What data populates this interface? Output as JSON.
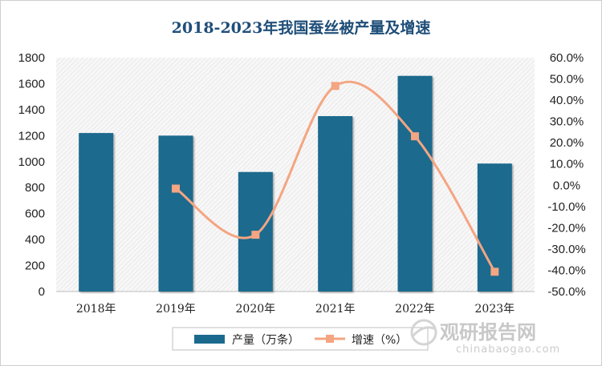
{
  "chart_data": {
    "type": "bar",
    "title": "2018-2023年我国蚕丝被产量及增速",
    "categories": [
      "2018年",
      "2019年",
      "2020年",
      "2021年",
      "2022年",
      "2023年"
    ],
    "series": [
      {
        "name": "产量（万条）",
        "type": "bar",
        "axis": "left",
        "color": "#1b6a8e",
        "values": [
          1220,
          1200,
          920,
          1350,
          1660,
          985
        ]
      },
      {
        "name": "增速（%）",
        "type": "line",
        "axis": "right",
        "color": "#f4a582",
        "smooth": true,
        "values": [
          null,
          -1.6,
          -23.3,
          46.7,
          23.0,
          -40.7
        ]
      }
    ],
    "left_axis": {
      "min": 0,
      "max": 1800,
      "step": 200,
      "ticks": [
        "0",
        "200",
        "400",
        "600",
        "800",
        "1000",
        "1200",
        "1400",
        "1600",
        "1800"
      ]
    },
    "right_axis": {
      "min": -50,
      "max": 60,
      "step": 10,
      "ticks": [
        "-50.0%",
        "-40.0%",
        "-30.0%",
        "-20.0%",
        "-10.0%",
        "0.0%",
        "10.0%",
        "20.0%",
        "30.0%",
        "40.0%",
        "50.0%",
        "60.0%"
      ]
    },
    "legend_position": "bottom",
    "grid": false
  },
  "watermark": {
    "brand": "观研报告网",
    "url": "chinabaogao.com"
  }
}
